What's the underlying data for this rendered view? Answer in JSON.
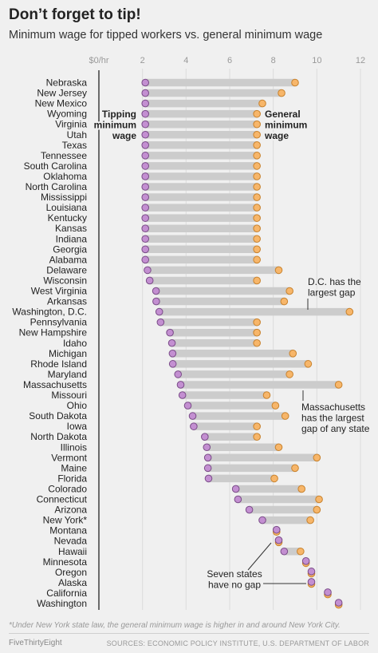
{
  "header": {
    "title": "Don’t forget to tip!",
    "subtitle": "Minimum wage for tipped workers vs. general minimum wage"
  },
  "chart_data": {
    "type": "dumbbell",
    "x_ticks": [
      0,
      2,
      4,
      6,
      8,
      10,
      12
    ],
    "x_tick_labels": [
      "$0/hr",
      "2",
      "4",
      "6",
      "8",
      "10",
      "12"
    ],
    "xlim": [
      0,
      12
    ],
    "grid": true,
    "colors": {
      "tipped": "#c38fd1",
      "tipped_stroke": "#7a4c88",
      "general": "#f7b66a",
      "general_stroke": "#c8822d",
      "bar": "#cccccc"
    },
    "series_labels": {
      "tipped": "Tipping minimum wage",
      "general": "General minimum wage"
    },
    "states": [
      "Nebraska",
      "New Jersey",
      "New Mexico",
      "Wyoming",
      "Virginia",
      "Utah",
      "Texas",
      "Tennessee",
      "South Carolina",
      "Oklahoma",
      "North Carolina",
      "Mississippi",
      "Louisiana",
      "Kentucky",
      "Kansas",
      "Indiana",
      "Georgia",
      "Alabama",
      "Delaware",
      "Wisconsin",
      "West Virginia",
      "Arkansas",
      "Washington, D.C.",
      "Pennsylvania",
      "New Hampshire",
      "Idaho",
      "Michigan",
      "Rhode Island",
      "Maryland",
      "Massachusetts",
      "Missouri",
      "Ohio",
      "South Dakota",
      "Iowa",
      "North Dakota",
      "Illinois",
      "Vermont",
      "Maine",
      "Florida",
      "Colorado",
      "Connecticut",
      "Arizona",
      "New York*",
      "Montana",
      "Nevada",
      "Hawaii",
      "Minnesota",
      "Oregon",
      "Alaska",
      "California",
      "Washington"
    ],
    "tipped_min": [
      2.13,
      2.13,
      2.13,
      2.13,
      2.13,
      2.13,
      2.13,
      2.13,
      2.13,
      2.13,
      2.13,
      2.13,
      2.13,
      2.13,
      2.13,
      2.13,
      2.13,
      2.13,
      2.23,
      2.33,
      2.62,
      2.63,
      2.77,
      2.83,
      3.26,
      3.35,
      3.38,
      3.39,
      3.63,
      3.75,
      3.83,
      4.08,
      4.3,
      4.35,
      4.86,
      4.95,
      5.0,
      5.0,
      5.03,
      6.28,
      6.38,
      6.9,
      7.5,
      8.15,
      8.25,
      8.5,
      9.5,
      9.75,
      9.75,
      10.5,
      11.0
    ],
    "general_min": [
      9.0,
      8.38,
      7.5,
      7.25,
      7.25,
      7.25,
      7.25,
      7.25,
      7.25,
      7.25,
      7.25,
      7.25,
      7.25,
      7.25,
      7.25,
      7.25,
      7.25,
      7.25,
      8.25,
      7.25,
      8.75,
      8.5,
      11.5,
      7.25,
      7.25,
      7.25,
      8.9,
      9.6,
      8.75,
      11.0,
      7.7,
      8.1,
      8.55,
      7.25,
      7.25,
      8.25,
      10.0,
      9.0,
      8.05,
      9.3,
      10.1,
      10.0,
      9.7,
      8.15,
      8.25,
      9.25,
      9.5,
      9.75,
      9.75,
      10.5,
      11.0
    ],
    "annotations": {
      "tipped_label": [
        "Tipping",
        "minimum",
        "wage"
      ],
      "general_label": [
        "General",
        "minimum",
        "wage"
      ],
      "dc": [
        "D.C. has the",
        "largest gap"
      ],
      "ma": [
        "Massachusetts",
        "has the largest",
        "gap of any state"
      ],
      "nogap": [
        "Seven states",
        "have no gap"
      ]
    }
  },
  "footer": {
    "footnote": "*Under New York state law, the general minimum wage is higher in and around New York City.",
    "brand": "FiveThirtyEight",
    "sources": "SOURCES: ECONOMIC POLICY INSTITUTE, U.S. DEPARTMENT OF LABOR"
  }
}
